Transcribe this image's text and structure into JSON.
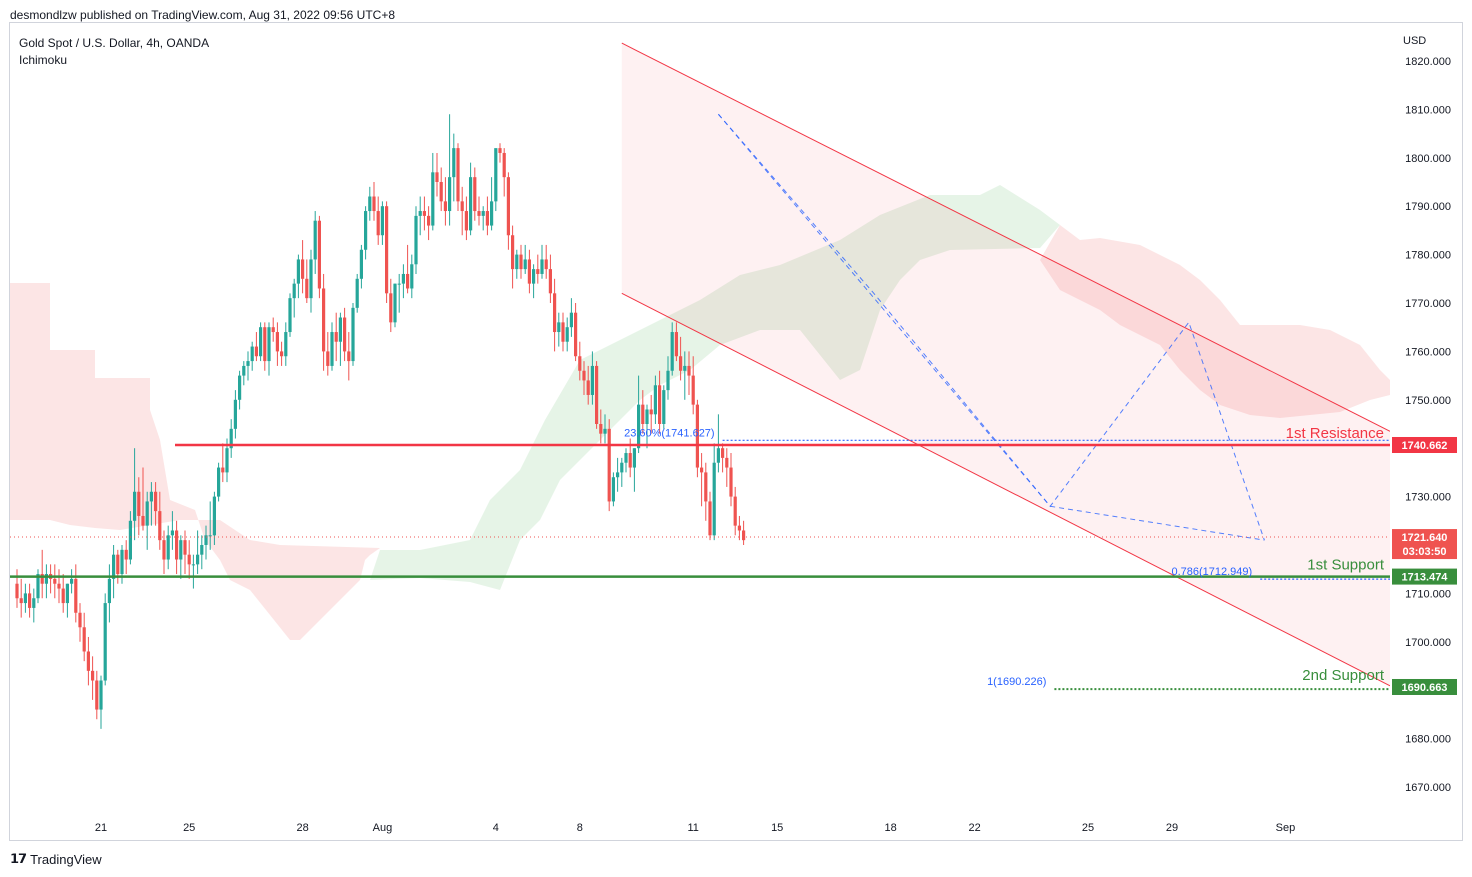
{
  "publisher": "desmondlzw published on TradingView.com, Aug 31, 2022 09:56 UTC+8",
  "symbol": "Gold Spot / U.S. Dollar, 4h, OANDA",
  "indicator": "Ichimoku",
  "brand": "TradingView",
  "currency": "USD",
  "colors": {
    "resistance": "#f23645",
    "support": "#388e3c",
    "up": "#26a69a",
    "down": "#ef5350",
    "fib": "#2962ff",
    "channel": "#f23645"
  },
  "chart_data": {
    "type": "candlestick",
    "ylim": [
      1663,
      1830
    ],
    "y_ticks": [
      "1820.000",
      "1810.000",
      "1800.000",
      "1790.000",
      "1780.000",
      "1770.000",
      "1760.000",
      "1750.000",
      "1740.000",
      "1730.000",
      "1720.000",
      "1710.000",
      "1700.000",
      "1690.000",
      "1680.000",
      "1670.000"
    ],
    "x_ticks": [
      {
        "label": "21",
        "bar": 20
      },
      {
        "label": "25",
        "bar": 41
      },
      {
        "label": "28",
        "bar": 68
      },
      {
        "label": "Aug",
        "bar": 87
      },
      {
        "label": "4",
        "bar": 114
      },
      {
        "label": "8",
        "bar": 134
      },
      {
        "label": "11",
        "bar": 161
      },
      {
        "label": "15",
        "bar": 181
      },
      {
        "label": "18",
        "bar": 208
      },
      {
        "label": "22",
        "bar": 228
      },
      {
        "label": "25",
        "bar": 255
      },
      {
        "label": "29",
        "bar": 275
      },
      {
        "label": "Sep",
        "bar": 302
      }
    ],
    "candles": [
      [
        1712,
        1715,
        1707,
        1709
      ],
      [
        1709,
        1713,
        1705,
        1708
      ],
      [
        1708,
        1712,
        1706,
        1710
      ],
      [
        1710,
        1712,
        1705,
        1707
      ],
      [
        1707,
        1711,
        1704,
        1709
      ],
      [
        1709,
        1715,
        1708,
        1714
      ],
      [
        1714,
        1719,
        1709,
        1712
      ],
      [
        1712,
        1716,
        1709,
        1714
      ],
      [
        1714,
        1716,
        1710,
        1713
      ],
      [
        1713,
        1716,
        1709,
        1712
      ],
      [
        1712,
        1715,
        1708,
        1711
      ],
      [
        1711,
        1714,
        1706,
        1708
      ],
      [
        1708,
        1712,
        1705,
        1712
      ],
      [
        1712,
        1715,
        1710,
        1713
      ],
      [
        1713,
        1716,
        1704,
        1706
      ],
      [
        1706,
        1708,
        1700,
        1703
      ],
      [
        1703,
        1706,
        1696,
        1698
      ],
      [
        1698,
        1701,
        1691,
        1694
      ],
      [
        1694,
        1697,
        1688,
        1692
      ],
      [
        1692,
        1694,
        1684,
        1686
      ],
      [
        1686,
        1693,
        1682,
        1692
      ],
      [
        1692,
        1710,
        1691,
        1708
      ],
      [
        1708,
        1716,
        1704,
        1713
      ],
      [
        1713,
        1720,
        1709,
        1718
      ],
      [
        1718,
        1719,
        1712,
        1714
      ],
      [
        1714,
        1720,
        1712,
        1719
      ],
      [
        1719,
        1721,
        1714,
        1717
      ],
      [
        1717,
        1727,
        1716,
        1725
      ],
      [
        1725,
        1740,
        1721,
        1731
      ],
      [
        1731,
        1734,
        1722,
        1726
      ],
      [
        1726,
        1736,
        1723,
        1724
      ],
      [
        1724,
        1731,
        1719,
        1729
      ],
      [
        1729,
        1733,
        1724,
        1731
      ],
      [
        1731,
        1733,
        1724,
        1727
      ],
      [
        1727,
        1731,
        1719,
        1721
      ],
      [
        1721,
        1723,
        1714,
        1717
      ],
      [
        1717,
        1724,
        1715,
        1722
      ],
      [
        1722,
        1727,
        1719,
        1723
      ],
      [
        1723,
        1725,
        1714,
        1717
      ],
      [
        1717,
        1722,
        1713,
        1721
      ],
      [
        1721,
        1723,
        1714,
        1718
      ],
      [
        1718,
        1721,
        1713,
        1716
      ],
      [
        1716,
        1718,
        1711,
        1716
      ],
      [
        1716,
        1723,
        1714,
        1718
      ],
      [
        1718,
        1722,
        1715,
        1720
      ],
      [
        1720,
        1724,
        1717,
        1722
      ],
      [
        1722,
        1729,
        1719,
        1722
      ],
      [
        1722,
        1731,
        1720,
        1730
      ],
      [
        1730,
        1737,
        1729,
        1736
      ],
      [
        1736,
        1741,
        1733,
        1735
      ],
      [
        1735,
        1742,
        1733,
        1740
      ],
      [
        1740,
        1746,
        1738,
        1744
      ],
      [
        1744,
        1752,
        1742,
        1750
      ],
      [
        1750,
        1756,
        1748,
        1755
      ],
      [
        1755,
        1758,
        1753,
        1757
      ],
      [
        1757,
        1760,
        1754,
        1758
      ],
      [
        1758,
        1762,
        1756,
        1761
      ],
      [
        1761,
        1764,
        1758,
        1759
      ],
      [
        1759,
        1766,
        1758,
        1765
      ],
      [
        1765,
        1766,
        1756,
        1758
      ],
      [
        1758,
        1766,
        1755,
        1765
      ],
      [
        1765,
        1767,
        1762,
        1764
      ],
      [
        1764,
        1766,
        1757,
        1760
      ],
      [
        1760,
        1762,
        1757,
        1759
      ],
      [
        1759,
        1766,
        1757,
        1764
      ],
      [
        1764,
        1772,
        1763,
        1771
      ],
      [
        1771,
        1775,
        1767,
        1774
      ],
      [
        1774,
        1780,
        1771,
        1779
      ],
      [
        1779,
        1783,
        1772,
        1775
      ],
      [
        1775,
        1779,
        1770,
        1771
      ],
      [
        1771,
        1781,
        1768,
        1779
      ],
      [
        1779,
        1789,
        1776,
        1787
      ],
      [
        1787,
        1788,
        1771,
        1773
      ],
      [
        1773,
        1776,
        1756,
        1760
      ],
      [
        1760,
        1764,
        1755,
        1757
      ],
      [
        1757,
        1766,
        1756,
        1764
      ],
      [
        1764,
        1768,
        1758,
        1762
      ],
      [
        1762,
        1768,
        1757,
        1767
      ],
      [
        1767,
        1769,
        1758,
        1760
      ],
      [
        1760,
        1764,
        1754,
        1758
      ],
      [
        1758,
        1770,
        1757,
        1769
      ],
      [
        1769,
        1776,
        1768,
        1775
      ],
      [
        1775,
        1782,
        1773,
        1781
      ],
      [
        1781,
        1790,
        1779,
        1789
      ],
      [
        1789,
        1794,
        1787,
        1792
      ],
      [
        1792,
        1795,
        1787,
        1789
      ],
      [
        1789,
        1792,
        1782,
        1784
      ],
      [
        1784,
        1791,
        1782,
        1790
      ],
      [
        1790,
        1791,
        1770,
        1772
      ],
      [
        1772,
        1775,
        1764,
        1766
      ],
      [
        1766,
        1774,
        1765,
        1774
      ],
      [
        1774,
        1776,
        1768,
        1774
      ],
      [
        1774,
        1778,
        1771,
        1776
      ],
      [
        1776,
        1782,
        1772,
        1773
      ],
      [
        1773,
        1780,
        1771,
        1778
      ],
      [
        1778,
        1790,
        1776,
        1788
      ],
      [
        1788,
        1792,
        1784,
        1789
      ],
      [
        1789,
        1792,
        1785,
        1788
      ],
      [
        1788,
        1790,
        1783,
        1786
      ],
      [
        1786,
        1801,
        1785,
        1797
      ],
      [
        1797,
        1801,
        1792,
        1795
      ],
      [
        1795,
        1798,
        1789,
        1791
      ],
      [
        1791,
        1796,
        1786,
        1789
      ],
      [
        1789,
        1809,
        1786,
        1796
      ],
      [
        1796,
        1805,
        1791,
        1802
      ],
      [
        1802,
        1803,
        1789,
        1791
      ],
      [
        1791,
        1794,
        1784,
        1789
      ],
      [
        1789,
        1792,
        1783,
        1785
      ],
      [
        1785,
        1799,
        1784,
        1796
      ],
      [
        1796,
        1798,
        1787,
        1789
      ],
      [
        1789,
        1792,
        1786,
        1788
      ],
      [
        1788,
        1790,
        1785,
        1789
      ],
      [
        1789,
        1792,
        1784,
        1786
      ],
      [
        1786,
        1796,
        1785,
        1791
      ],
      [
        1791,
        1801,
        1789,
        1802
      ],
      [
        1802,
        1803,
        1799,
        1801
      ],
      [
        1801,
        1802,
        1792,
        1796
      ],
      [
        1796,
        1797,
        1781,
        1784
      ],
      [
        1784,
        1786,
        1773,
        1777
      ],
      [
        1777,
        1781,
        1775,
        1780
      ],
      [
        1780,
        1782,
        1775,
        1777
      ],
      [
        1777,
        1782,
        1776,
        1779
      ],
      [
        1779,
        1781,
        1772,
        1774
      ],
      [
        1774,
        1778,
        1771,
        1777
      ],
      [
        1777,
        1780,
        1774,
        1776
      ],
      [
        1776,
        1782,
        1775,
        1779
      ],
      [
        1779,
        1782,
        1775,
        1777
      ],
      [
        1777,
        1780,
        1770,
        1772
      ],
      [
        1772,
        1775,
        1760,
        1764
      ],
      [
        1764,
        1768,
        1761,
        1766
      ],
      [
        1766,
        1768,
        1760,
        1762
      ],
      [
        1762,
        1767,
        1760,
        1765
      ],
      [
        1765,
        1771,
        1763,
        1768
      ],
      [
        1768,
        1770,
        1758,
        1759
      ],
      [
        1759,
        1762,
        1754,
        1756
      ],
      [
        1756,
        1758,
        1751,
        1754
      ],
      [
        1754,
        1757,
        1749,
        1751
      ],
      [
        1751,
        1760,
        1749,
        1757
      ],
      [
        1757,
        1758,
        1744,
        1745
      ],
      [
        1745,
        1748,
        1741,
        1743
      ],
      [
        1743,
        1747,
        1741,
        1744
      ],
      [
        1744,
        1746,
        1727,
        1729
      ],
      [
        1729,
        1735,
        1728,
        1734
      ],
      [
        1734,
        1738,
        1731,
        1735
      ],
      [
        1735,
        1738,
        1732,
        1737
      ],
      [
        1737,
        1740,
        1735,
        1739
      ],
      [
        1739,
        1742,
        1734,
        1736
      ],
      [
        1736,
        1740,
        1731,
        1740
      ],
      [
        1740,
        1755,
        1739,
        1749
      ],
      [
        1749,
        1752,
        1743,
        1745
      ],
      [
        1745,
        1749,
        1740,
        1748
      ],
      [
        1748,
        1751,
        1743,
        1747
      ],
      [
        1747,
        1755,
        1745,
        1753
      ],
      [
        1753,
        1756,
        1743,
        1745
      ],
      [
        1745,
        1753,
        1744,
        1752
      ],
      [
        1752,
        1759,
        1750,
        1756
      ],
      [
        1756,
        1766,
        1755,
        1764
      ],
      [
        1764,
        1766,
        1758,
        1759
      ],
      [
        1759,
        1763,
        1754,
        1756
      ],
      [
        1756,
        1760,
        1750,
        1757
      ],
      [
        1757,
        1760,
        1751,
        1755
      ],
      [
        1755,
        1759,
        1747,
        1749
      ],
      [
        1749,
        1750,
        1734,
        1736
      ],
      [
        1736,
        1739,
        1728,
        1735
      ],
      [
        1735,
        1737,
        1725,
        1729
      ],
      [
        1729,
        1731,
        1721,
        1722
      ],
      [
        1722,
        1741,
        1721,
        1737
      ],
      [
        1737,
        1747,
        1735,
        1740
      ],
      [
        1740,
        1741,
        1735,
        1738
      ],
      [
        1738,
        1740,
        1732,
        1736
      ],
      [
        1736,
        1739,
        1728,
        1730
      ],
      [
        1730,
        1732,
        1722,
        1724
      ],
      [
        1724,
        1726,
        1721,
        1723
      ],
      [
        1723,
        1725,
        1720,
        1721
      ]
    ],
    "fibonacci": [
      {
        "label": "23.60%(1741.627)",
        "value": 1741.627
      },
      {
        "label": "0.786(1712.949)",
        "value": 1712.949
      },
      {
        "label": "1(1690.226)",
        "value": 1690.226
      }
    ],
    "levels": [
      {
        "name": "1st Resistance",
        "value": 1740.662,
        "tag": "1740.662",
        "kind": "resistance"
      },
      {
        "name": "1st Support",
        "value": 1713.474,
        "tag": "1713.474",
        "kind": "support"
      },
      {
        "name": "2nd Support",
        "value": 1690.663,
        "tag": "1690.663",
        "kind": "support"
      }
    ],
    "current": {
      "value": 1721.64,
      "tag": "1721.640",
      "countdown": "03:03:50"
    }
  }
}
